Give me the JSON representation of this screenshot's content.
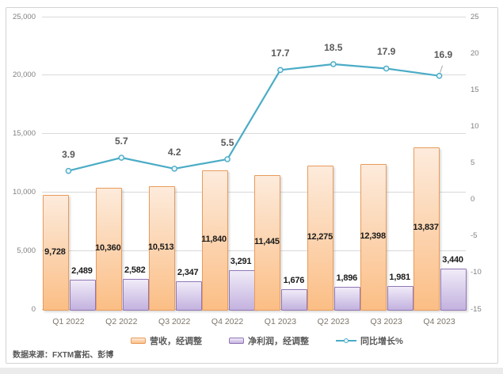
{
  "frame": {
    "source_note": "数据来源：FXTM富拓、彭博"
  },
  "legend": {
    "items": [
      {
        "label": "营收，经调整",
        "series": "revenue",
        "marker": "bar"
      },
      {
        "label": "净利润，经调整",
        "series": "profit",
        "marker": "bar"
      },
      {
        "label": "同比增长%",
        "series": "growth",
        "marker": "line"
      }
    ]
  },
  "colors": {
    "revenue_fill_top": "#fdebdc",
    "revenue_fill_bottom": "#fbbe85",
    "revenue_border": "#e89b5c",
    "profit_fill_top": "#f0ebf8",
    "profit_fill_bottom": "#c3b2df",
    "profit_border": "#9077b5",
    "growth_line": "#4bacc6",
    "marker_fill": "#eaf5f9",
    "grid": "#d9d9d9",
    "axis_text": "#808080",
    "category_text": "#7d756b",
    "bar_label_text": "#1a1a1a",
    "line_label_text": "#595959",
    "chart_border": "#d3d3d3"
  },
  "chart_data": {
    "type": "bar+line combo",
    "title": "",
    "categories": [
      "Q1 2022",
      "Q2 2022",
      "Q3 2022",
      "Q4 2022",
      "Q1 2023",
      "Q2 2023",
      "Q3 2023",
      "Q4 2023"
    ],
    "series": [
      {
        "name": "营收，经调整",
        "type": "bar",
        "axis": "left",
        "values": [
          9728,
          10360,
          10513,
          11840,
          11445,
          12275,
          12398,
          13837
        ],
        "labels": [
          "9,728",
          "10,360",
          "10,513",
          "11,840",
          "11,445",
          "12,275",
          "12,398",
          "13,837"
        ]
      },
      {
        "name": "净利润，经调整",
        "type": "bar",
        "axis": "left",
        "values": [
          2489,
          2582,
          2347,
          3291,
          1676,
          1896,
          1981,
          3440
        ],
        "labels": [
          "2,489",
          "2,582",
          "2,347",
          "3,291",
          "1,676",
          "1,896",
          "1,981",
          "3,440"
        ]
      },
      {
        "name": "同比增长%",
        "type": "line",
        "axis": "right",
        "values": [
          3.9,
          5.7,
          4.2,
          5.5,
          17.7,
          18.5,
          17.9,
          16.9
        ],
        "labels": [
          "3.9",
          "5.7",
          "4.2",
          "5.5",
          "17.7",
          "18.5",
          "17.9",
          "16.9"
        ]
      }
    ],
    "left_axis": {
      "min": 0,
      "max": 25000,
      "step": 5000,
      "tick_labels": [
        "0",
        "5,000",
        "10,000",
        "15,000",
        "20,000",
        "25,000"
      ]
    },
    "right_axis": {
      "min": -15,
      "max": 25,
      "step": 5,
      "tick_labels": [
        "-15",
        "-10",
        "-5",
        "0",
        "5",
        "10",
        "15",
        "20",
        "25"
      ]
    },
    "grid": true,
    "legend_position": "bottom"
  }
}
